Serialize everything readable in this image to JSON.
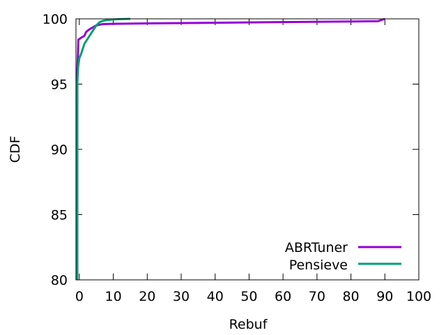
{
  "chart_data": {
    "type": "line",
    "title": "",
    "xlabel": "Rebuf",
    "ylabel": "CDF",
    "xlim": [
      -1,
      100
    ],
    "ylim": [
      80,
      100
    ],
    "xticks": [
      0,
      10,
      20,
      30,
      40,
      50,
      60,
      70,
      80,
      90,
      100
    ],
    "yticks": [
      80,
      85,
      90,
      95,
      100
    ],
    "grid": false,
    "legend_position": "bottom-right",
    "series": [
      {
        "name": "ABRTuner",
        "color": "#9400d3",
        "x": [
          -0.6,
          -0.6,
          -0.4,
          -0.3,
          0,
          0.5,
          1.5,
          2,
          3,
          4,
          5,
          6,
          7,
          10,
          20,
          40,
          60,
          80,
          88,
          90
        ],
        "y": [
          80,
          96.0,
          97.3,
          98.4,
          98.45,
          98.55,
          98.7,
          99.0,
          99.2,
          99.35,
          99.5,
          99.55,
          99.6,
          99.62,
          99.65,
          99.7,
          99.75,
          99.8,
          99.82,
          100
        ]
      },
      {
        "name": "Pensieve",
        "color": "#009e73",
        "x": [
          -0.6,
          -0.6,
          -0.4,
          0,
          0.5,
          1,
          1.5,
          2,
          2.5,
          3,
          3.5,
          4,
          5,
          6,
          7,
          8,
          10,
          12,
          15
        ],
        "y": [
          80,
          95.0,
          96.2,
          97.0,
          97.3,
          97.7,
          98.1,
          98.3,
          98.5,
          98.7,
          98.9,
          99.1,
          99.5,
          99.75,
          99.85,
          99.9,
          99.95,
          99.98,
          100
        ]
      }
    ]
  }
}
